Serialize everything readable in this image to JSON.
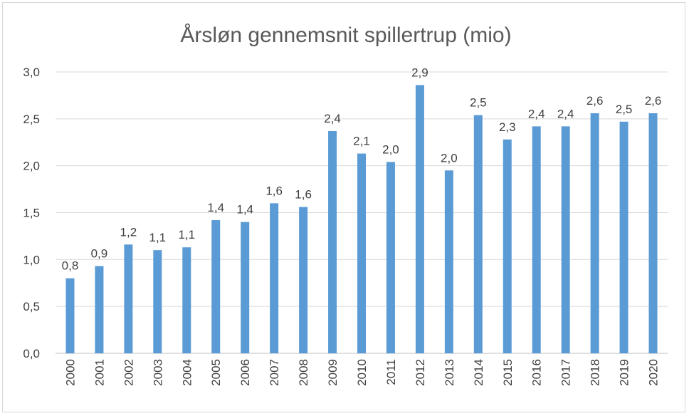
{
  "chart_data": {
    "type": "bar",
    "title": "Årsløn gennemsnit spillertrup (mio)",
    "xlabel": "",
    "ylabel": "",
    "ylim": [
      0,
      3.0
    ],
    "y_ticks": [
      "0,0",
      "0,5",
      "1,0",
      "1,5",
      "2,0",
      "2,5",
      "3,0"
    ],
    "grid": true,
    "legend": "none",
    "bar_color": "#5b9bd5",
    "categories": [
      "2000",
      "2001",
      "2002",
      "2003",
      "2004",
      "2005",
      "2006",
      "2007",
      "2008",
      "2009",
      "2010",
      "2011",
      "2012",
      "2013",
      "2014",
      "2015",
      "2016",
      "2017",
      "2018",
      "2019",
      "2020"
    ],
    "values": [
      0.8,
      0.93,
      1.16,
      1.1,
      1.13,
      1.42,
      1.4,
      1.6,
      1.56,
      2.37,
      2.13,
      2.04,
      2.86,
      1.95,
      2.54,
      2.28,
      2.42,
      2.42,
      2.56,
      2.47,
      2.56
    ],
    "data_labels": [
      "0,8",
      "0,9",
      "1,2",
      "1,1",
      "1,1",
      "1,4",
      "1,4",
      "1,6",
      "1,6",
      "2,4",
      "2,1",
      "2,0",
      "2,9",
      "2,0",
      "2,5",
      "2,3",
      "2,4",
      "2,4",
      "2,6",
      "2,5",
      "2,6"
    ]
  }
}
